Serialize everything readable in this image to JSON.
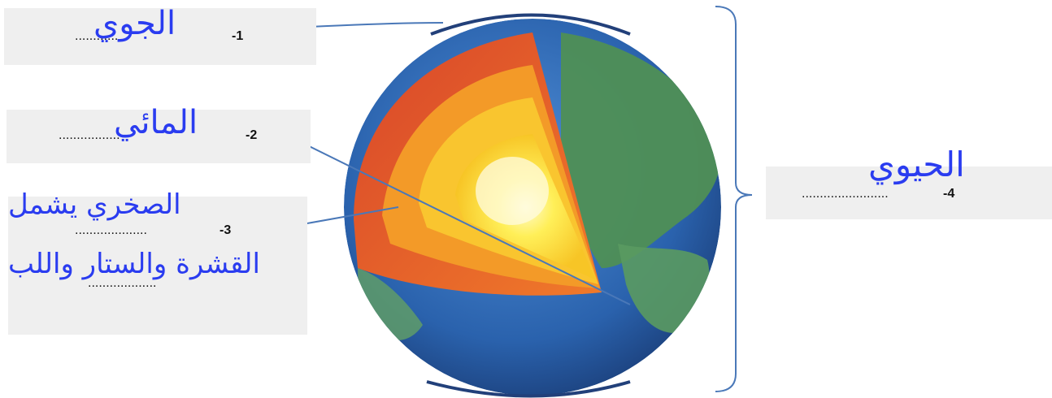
{
  "labels": {
    "item1": {
      "number": "-1",
      "dots": "............",
      "answer": "الجوي"
    },
    "item2": {
      "number": "-2",
      "dots": ".................",
      "answer": "المائي"
    },
    "item3": {
      "number": "-3",
      "dots": "....................",
      "dots2": "...................",
      "answer_line1": "الصخري يشمل",
      "answer_line2": "القشرة والستار واللب"
    },
    "item4": {
      "number": "-4",
      "dots": "........................",
      "answer": "الحيوي"
    }
  },
  "colors": {
    "handwriting": "#2a3cf0",
    "arrow": "#4a78b8",
    "box": "#efefef",
    "ocean": "#2f6bb8",
    "land": "#4f8f55",
    "crust": "#e4572a",
    "mantle": "#f39a28",
    "core": "#ffe94a"
  }
}
